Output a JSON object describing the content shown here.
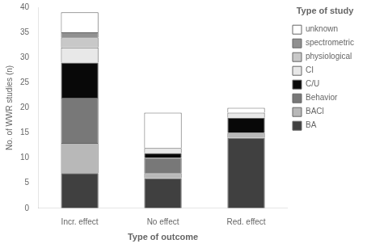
{
  "chart_data": {
    "type": "bar",
    "stacked": true,
    "xlabel": "Type of outcome",
    "ylabel": "No. of WWR studies (n)",
    "legend_title": "Type of study",
    "legend": "right",
    "grid": false,
    "categories": [
      "Incr. effect",
      "No effect",
      "Red. effect"
    ],
    "series": [
      {
        "name": "BA",
        "color": "#404040",
        "values": [
          7,
          6,
          14
        ]
      },
      {
        "name": "BACl",
        "color": "#b8b8b8",
        "values": [
          6,
          1,
          1
        ]
      },
      {
        "name": "Behavior",
        "color": "#787878",
        "values": [
          9,
          3,
          0
        ]
      },
      {
        "name": "C/U",
        "color": "#080808",
        "values": [
          7,
          1,
          3
        ]
      },
      {
        "name": "CI",
        "color": "#e8e8e8",
        "values": [
          3,
          1,
          1
        ]
      },
      {
        "name": "physiological",
        "color": "#c8c8c8",
        "values": [
          2,
          0,
          0
        ]
      },
      {
        "name": "spectrometric",
        "color": "#909090",
        "values": [
          1,
          0,
          0
        ]
      },
      {
        "name": "unknown",
        "color": "#ffffff",
        "values": [
          4,
          7,
          1
        ]
      }
    ],
    "ylim": [
      0,
      40
    ],
    "yticks": [
      0,
      5,
      10,
      15,
      20,
      25,
      30,
      35,
      40
    ]
  }
}
